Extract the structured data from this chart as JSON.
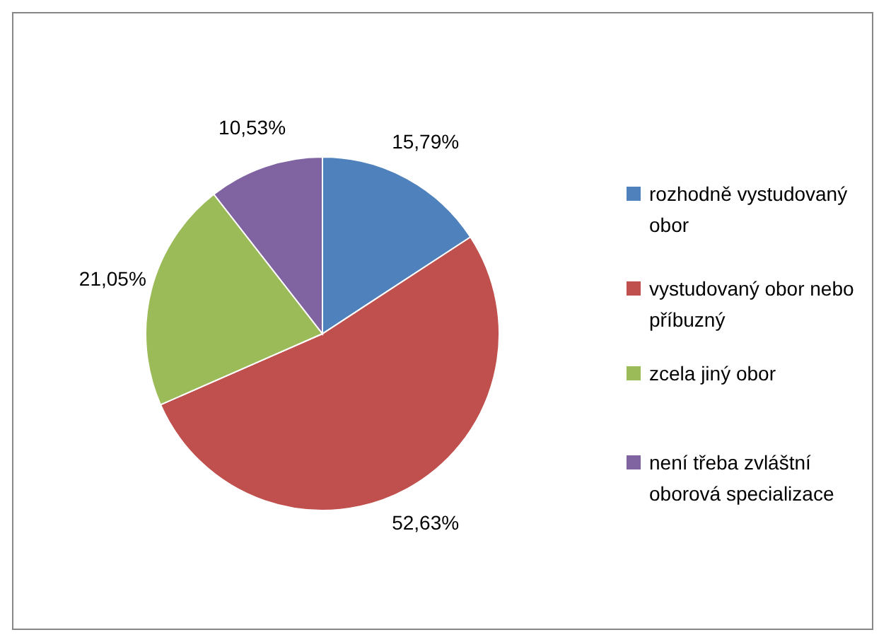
{
  "chart_data": {
    "type": "pie",
    "categories": [
      "rozhodně vystudovaný obor",
      "vystudovaný obor nebo příbuzný",
      "zcela jiný obor",
      "není třeba zvláštní oborová specializace"
    ],
    "values": [
      15.79,
      52.63,
      21.05,
      10.53
    ],
    "colors": [
      "#4f81bd",
      "#c0504d",
      "#9bbb59",
      "#8064a2"
    ],
    "value_labels": [
      "15,79%",
      "52,63%",
      "21,05%",
      "10,53%"
    ],
    "legend": "right"
  }
}
